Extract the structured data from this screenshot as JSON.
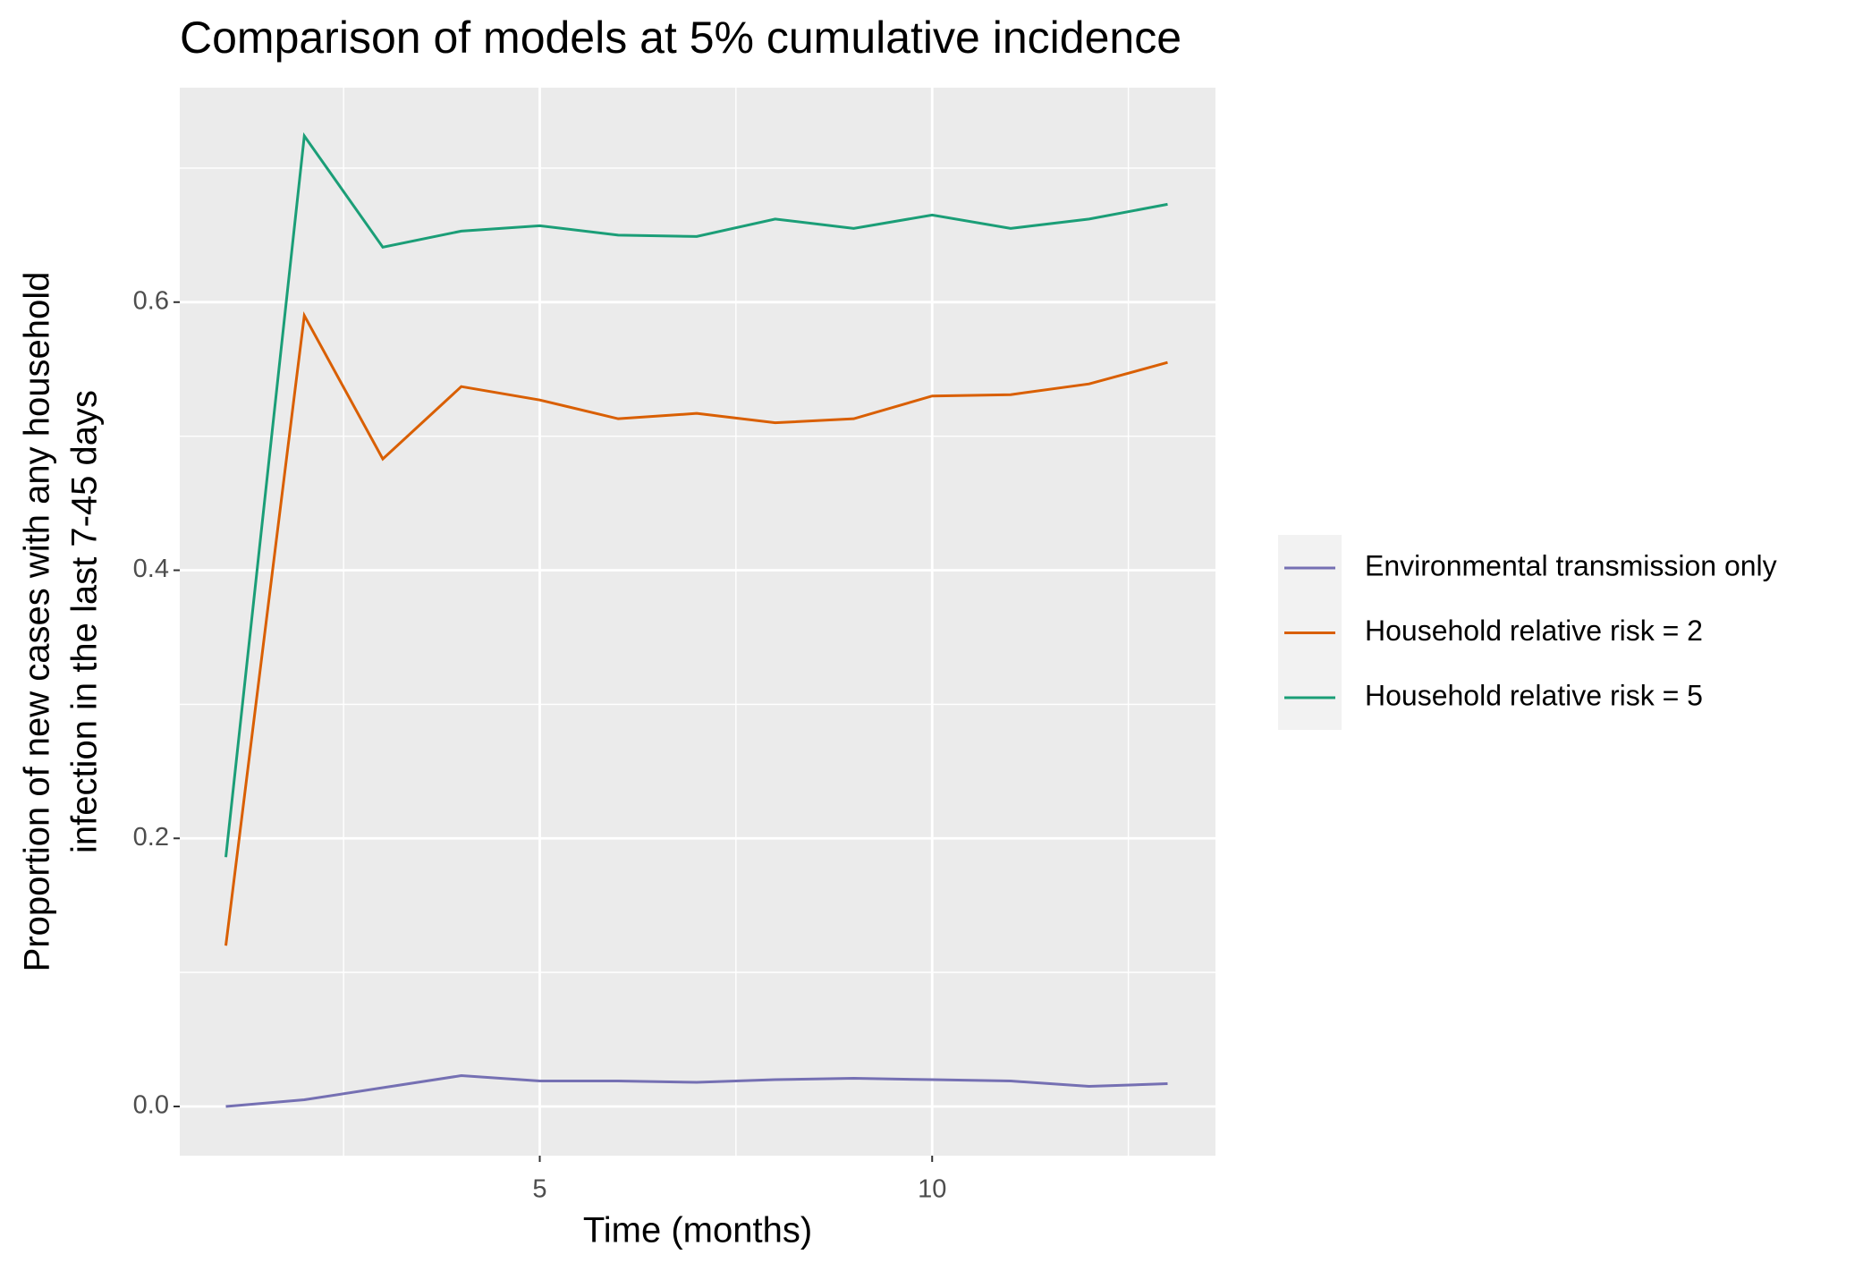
{
  "chart_data": {
    "type": "line",
    "title": "Comparison of models at 5% cumulative incidence",
    "x_label": "Time (months)",
    "y_label": [
      "Proportion of new cases with any household",
      "infection in the last 7-45 days"
    ],
    "x": [
      1,
      2,
      3,
      4,
      5,
      6,
      7,
      8,
      9,
      10,
      11,
      12,
      13
    ],
    "series": [
      {
        "name": "Environmental transmission only",
        "color": "#7570b3",
        "values": [
          0,
          0.005,
          0.014,
          0.023,
          0.019,
          0.019,
          0.018,
          0.02,
          0.021,
          0.02,
          0.019,
          0.015,
          0.017
        ]
      },
      {
        "name": "Household relative risk = 2",
        "color": "#d95f02",
        "values": [
          0.12,
          0.59,
          0.483,
          0.537,
          0.527,
          0.513,
          0.517,
          0.51,
          0.513,
          0.53,
          0.531,
          0.539,
          0.555
        ]
      },
      {
        "name": "Household relative risk = 5",
        "color": "#1b9e77",
        "values": [
          0.186,
          0.724,
          0.641,
          0.653,
          0.657,
          0.65,
          0.649,
          0.662,
          0.655,
          0.665,
          0.655,
          0.662,
          0.673
        ]
      }
    ],
    "xlim": [
      0.413,
      13.61
    ],
    "ylim": [
      -0.0367,
      0.76
    ],
    "xticks": [
      5,
      10
    ],
    "yticks": [
      {
        "value": 0,
        "label": "0.0"
      },
      0.2,
      0.4,
      0.6
    ],
    "xminor": [
      2.5,
      7.5,
      12.5
    ],
    "yminor": [
      0.1,
      0.3,
      0.5,
      0.7
    ],
    "grid": true,
    "legend": "right"
  }
}
